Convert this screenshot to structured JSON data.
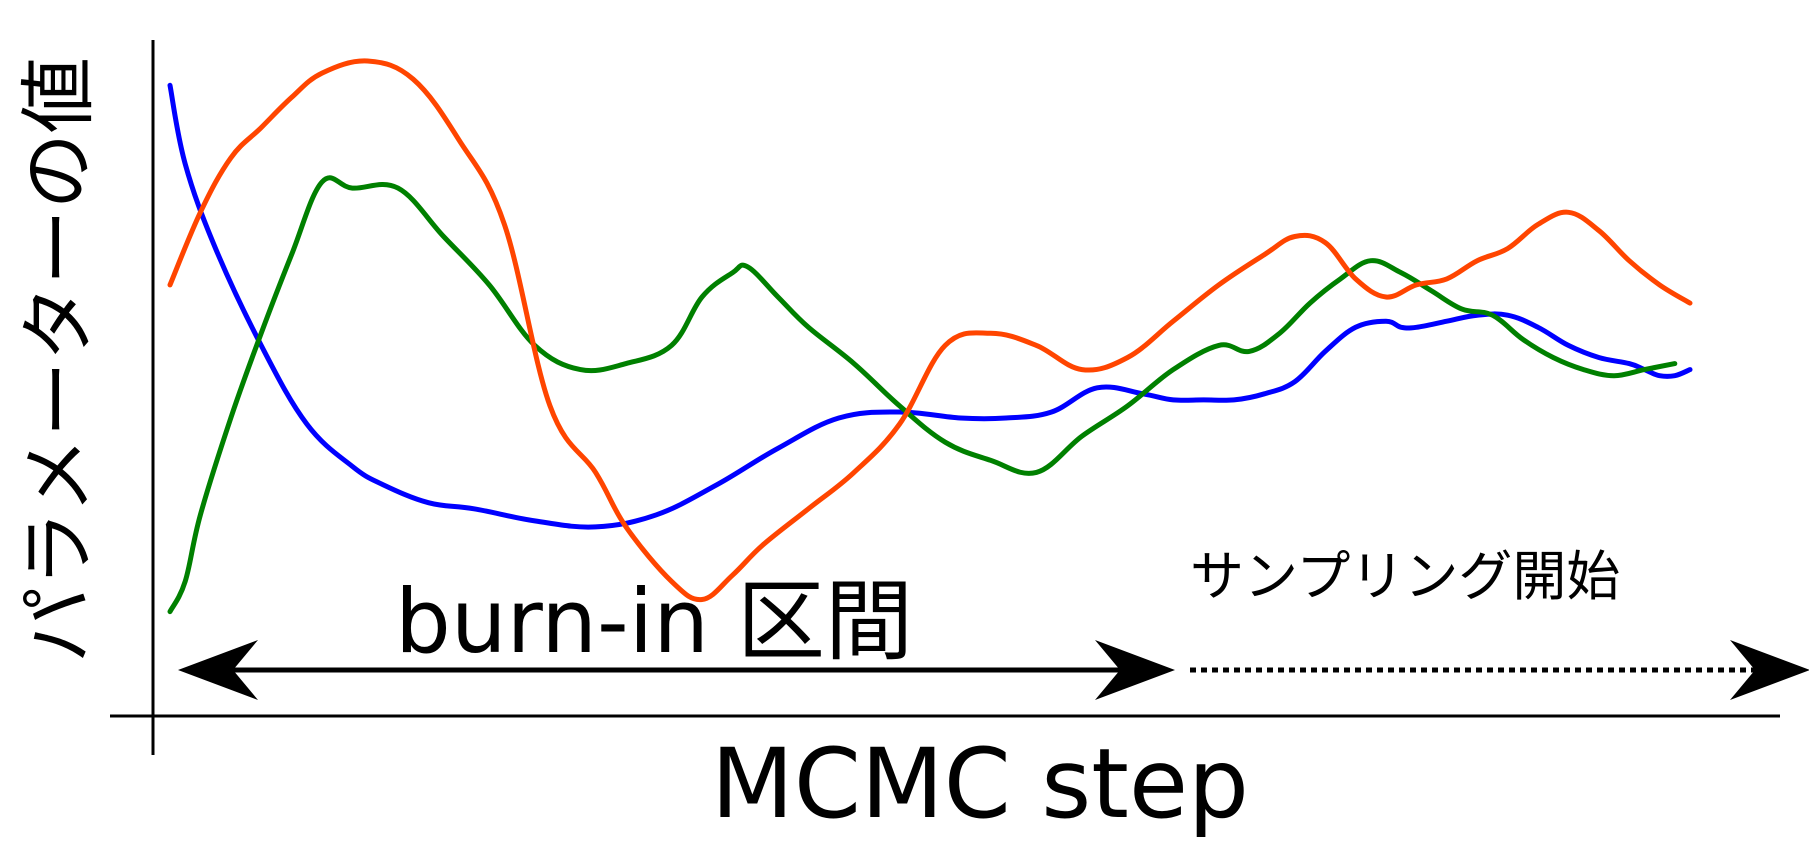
{
  "chart_data": {
    "type": "line",
    "xlabel": "MCMC step",
    "ylabel": "パラメーターの値",
    "title": "",
    "grid": false,
    "legend": "none",
    "xlim": [
      0,
      100
    ],
    "ylim": [
      0,
      100
    ],
    "annotations": {
      "burn_in": "burn-in 区間",
      "sampling": "サンプリング開始"
    },
    "series": [
      {
        "color": "#0000ff",
        "x": [
          0,
          1,
          3,
          6,
          9,
          12,
          14,
          17,
          20,
          24,
          28,
          32,
          36,
          40,
          44,
          48,
          52,
          55,
          58,
          61,
          64,
          66,
          68,
          70,
          72,
          74,
          76,
          78,
          80,
          81,
          82,
          84,
          86,
          88,
          90,
          92,
          94,
          96,
          97,
          98,
          99,
          100
        ],
        "y": [
          95,
          82,
          68,
          52,
          39,
          32,
          29,
          26,
          25,
          23,
          22,
          24,
          29,
          35,
          40,
          41,
          40,
          40,
          41,
          45,
          44,
          43,
          43,
          43,
          44,
          46,
          51,
          55,
          56,
          55,
          55,
          56,
          57,
          57,
          55,
          52,
          50,
          49,
          48,
          47,
          47,
          48
        ]
      },
      {
        "color": "#008000",
        "x": [
          0,
          1,
          2,
          4,
          6,
          8,
          10,
          12,
          15,
          18,
          21,
          24,
          27,
          30,
          33,
          35,
          37,
          38,
          40,
          42,
          45,
          48,
          51,
          54,
          57,
          60,
          63,
          66,
          69,
          71,
          73,
          75,
          77,
          79,
          81,
          83,
          85,
          87,
          89,
          91,
          93,
          95,
          97,
          99
        ],
        "y": [
          8,
          13,
          24,
          40,
          54,
          67,
          79,
          78,
          78,
          70,
          62,
          52,
          48,
          49,
          52,
          60,
          64,
          65,
          60,
          55,
          49,
          42,
          36,
          33,
          31,
          37,
          42,
          48,
          52,
          51,
          54,
          59,
          63,
          66,
          64,
          61,
          58,
          57,
          53,
          50,
          48,
          47,
          48,
          49
        ]
      },
      {
        "color": "#ff4500",
        "x": [
          0,
          2,
          4,
          6,
          8,
          10,
          13,
          16,
          19,
          22,
          25,
          28,
          30,
          33,
          35,
          37,
          39,
          42,
          45,
          48,
          51,
          54,
          57,
          60,
          63,
          66,
          69,
          72,
          74,
          76,
          78,
          80,
          82,
          84,
          86,
          88,
          90,
          92,
          94,
          96,
          98,
          100
        ],
        "y": [
          62,
          74,
          83,
          88,
          93,
          97,
          99,
          96,
          86,
          72,
          42,
          31,
          22,
          13,
          10,
          14,
          19,
          25,
          31,
          39,
          52,
          54,
          52,
          48,
          50,
          56,
          62,
          67,
          70,
          69,
          63,
          60,
          62,
          63,
          66,
          68,
          72,
          74,
          71,
          66,
          62,
          59
        ]
      }
    ]
  }
}
